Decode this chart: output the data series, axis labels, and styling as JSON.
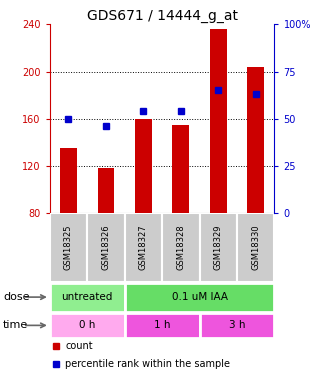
{
  "title": "GDS671 / 14444_g_at",
  "samples": [
    "GSM18325",
    "GSM18326",
    "GSM18327",
    "GSM18328",
    "GSM18329",
    "GSM18330"
  ],
  "counts": [
    135,
    118,
    160,
    155,
    236,
    204
  ],
  "percentiles": [
    50,
    46,
    54,
    54,
    65,
    63
  ],
  "ylim_left": [
    80,
    240
  ],
  "ylim_right": [
    0,
    100
  ],
  "yticks_left": [
    80,
    120,
    160,
    200,
    240
  ],
  "yticks_right": [
    0,
    25,
    50,
    75,
    100
  ],
  "ytick_labels_right": [
    "0",
    "25",
    "50",
    "75",
    "100%"
  ],
  "bar_color": "#cc0000",
  "dot_color": "#0000cc",
  "dose_labels": [
    {
      "text": "untreated",
      "start": 0,
      "end": 2,
      "color": "#90ee90"
    },
    {
      "text": "0.1 uM IAA",
      "start": 2,
      "end": 6,
      "color": "#66dd66"
    }
  ],
  "time_labels": [
    {
      "text": "0 h",
      "start": 0,
      "end": 2,
      "color": "#ffaaee"
    },
    {
      "text": "1 h",
      "start": 2,
      "end": 4,
      "color": "#ee55dd"
    },
    {
      "text": "3 h",
      "start": 4,
      "end": 6,
      "color": "#ee55dd"
    }
  ],
  "dose_row_label": "dose",
  "time_row_label": "time",
  "legend_items": [
    {
      "label": "count",
      "color": "#cc0000"
    },
    {
      "label": "percentile rank within the sample",
      "color": "#0000cc"
    }
  ],
  "title_fontsize": 10,
  "tick_fontsize": 7,
  "sample_fontsize": 6,
  "legend_fontsize": 7,
  "row_label_fontsize": 8,
  "annot_fontsize": 7.5
}
